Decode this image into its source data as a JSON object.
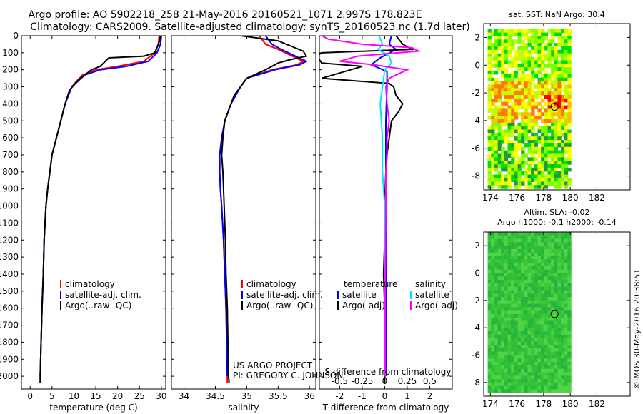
{
  "header": {
    "line1": "Argo profile: AO 5902218_258 21-May-2016 20160521_1071 2.997S 178.823E",
    "line2": "Climatology: CARS2009. Satellite-adjusted climatology: synTS_20160523.nc (1.7d later)"
  },
  "project": {
    "line1": "US ARGO PROJECT",
    "line2": "PI: GREGORY C. JOHNSON"
  },
  "timestamp": "©IMOS 30-May-2016 20:38:51",
  "chart_data": [
    {
      "id": "temperature",
      "type": "line",
      "xlabel": "temperature (deg C)",
      "xlim": [
        -2,
        31
      ],
      "xticks": [
        0,
        5,
        10,
        15,
        20,
        25,
        30
      ],
      "ylim": [
        2075,
        0
      ],
      "yticks": [
        0,
        100,
        200,
        300,
        400,
        500,
        600,
        700,
        800,
        900,
        1000,
        1100,
        1200,
        1300,
        1400,
        1500,
        1600,
        1700,
        1800,
        1900,
        2000
      ],
      "legend": [
        "climatology",
        "satellite-adj. clim.",
        "Argo(..raw -QC)"
      ],
      "legend_colors": [
        "#ff0000",
        "#0000ff",
        "#000000"
      ],
      "series": [
        {
          "name": "climatology",
          "color": "#ff0000",
          "points": [
            [
              29.5,
              0
            ],
            [
              29.3,
              50
            ],
            [
              28.5,
              100
            ],
            [
              26,
              150
            ],
            [
              20,
              180
            ],
            [
              15,
              200
            ],
            [
              12,
              230
            ],
            [
              10.5,
              270
            ],
            [
              9.5,
              300
            ],
            [
              8,
              400
            ],
            [
              7,
              500
            ],
            [
              6,
              600
            ],
            [
              5,
              700
            ],
            [
              4.5,
              800
            ],
            [
              4,
              900
            ],
            [
              3.6,
              1000
            ],
            [
              3.2,
              1200
            ],
            [
              3,
              1400
            ],
            [
              2.7,
              1600
            ],
            [
              2.5,
              1800
            ],
            [
              2.3,
              2000
            ],
            [
              2.3,
              2040
            ]
          ]
        },
        {
          "name": "satellite-adj. clim.",
          "color": "#0000ff",
          "points": [
            [
              30,
              0
            ],
            [
              29.8,
              50
            ],
            [
              29,
              100
            ],
            [
              27,
              150
            ],
            [
              22,
              180
            ],
            [
              16,
              200
            ],
            [
              12.5,
              230
            ],
            [
              10.8,
              270
            ],
            [
              9.5,
              300
            ],
            [
              8,
              400
            ],
            [
              7,
              500
            ],
            [
              6,
              600
            ],
            [
              5,
              700
            ],
            [
              4.5,
              800
            ],
            [
              4,
              900
            ],
            [
              3.6,
              1000
            ],
            [
              3.2,
              1200
            ],
            [
              3,
              1400
            ],
            [
              2.7,
              1600
            ],
            [
              2.5,
              1800
            ],
            [
              2.3,
              2000
            ]
          ]
        },
        {
          "name": "Argo(..raw -QC)",
          "color": "#000000",
          "points": [
            [
              29.8,
              0
            ],
            [
              29.6,
              30
            ],
            [
              29,
              70
            ],
            [
              28.5,
              100
            ],
            [
              26,
              120
            ],
            [
              18,
              130
            ],
            [
              16,
              180
            ],
            [
              14,
              200
            ],
            [
              12,
              240
            ],
            [
              11,
              260
            ],
            [
              10,
              290
            ],
            [
              9,
              320
            ],
            [
              8,
              400
            ],
            [
              7,
              500
            ],
            [
              6,
              600
            ],
            [
              5,
              700
            ],
            [
              4.5,
              800
            ],
            [
              4,
              900
            ],
            [
              3.6,
              1000
            ],
            [
              3.2,
              1200
            ],
            [
              3,
              1400
            ],
            [
              2.7,
              1600
            ],
            [
              2.5,
              1800
            ],
            [
              2.3,
              2000
            ],
            [
              2.3,
              2040
            ]
          ]
        }
      ]
    },
    {
      "id": "salinity",
      "type": "line",
      "xlabel": "salinity",
      "xlim": [
        33.8,
        36.1
      ],
      "xticks": [
        34,
        34.5,
        35,
        35.5,
        36
      ],
      "xtick_labels": [
        "34",
        "34.5",
        "35",
        "35.5",
        "36"
      ],
      "ylim": [
        2075,
        0
      ],
      "legend": [
        "climatology",
        "satellite-adj. clim.",
        "Argo(..raw -QC)"
      ],
      "legend_colors": [
        "#ff0000",
        "#0000ff",
        "#000000"
      ],
      "series": [
        {
          "name": "climatology",
          "color": "#ff0000",
          "points": [
            [
              35.2,
              0
            ],
            [
              35.3,
              50
            ],
            [
              35.5,
              80
            ],
            [
              35.9,
              150
            ],
            [
              35.8,
              170
            ],
            [
              35.4,
              200
            ],
            [
              35,
              250
            ],
            [
              34.9,
              300
            ],
            [
              34.75,
              400
            ],
            [
              34.65,
              500
            ],
            [
              34.6,
              600
            ],
            [
              34.57,
              700
            ],
            [
              34.57,
              800
            ],
            [
              34.58,
              900
            ],
            [
              34.6,
              1000
            ],
            [
              34.63,
              1200
            ],
            [
              34.65,
              1400
            ],
            [
              34.67,
              1600
            ],
            [
              34.68,
              1800
            ],
            [
              34.69,
              2000
            ],
            [
              34.69,
              2040
            ]
          ]
        },
        {
          "name": "satellite-adj. clim.",
          "color": "#0000ff",
          "points": [
            [
              35.3,
              0
            ],
            [
              35.4,
              50
            ],
            [
              35.55,
              80
            ],
            [
              35.95,
              150
            ],
            [
              35.85,
              170
            ],
            [
              35.45,
              200
            ],
            [
              35,
              250
            ],
            [
              34.9,
              300
            ],
            [
              34.75,
              400
            ],
            [
              34.65,
              500
            ],
            [
              34.6,
              600
            ],
            [
              34.57,
              700
            ],
            [
              34.57,
              800
            ],
            [
              34.58,
              900
            ],
            [
              34.6,
              1000
            ],
            [
              34.63,
              1200
            ],
            [
              34.65,
              1400
            ],
            [
              34.67,
              1600
            ],
            [
              34.68,
              1800
            ],
            [
              34.69,
              2000
            ]
          ]
        },
        {
          "name": "Argo(..raw -QC)",
          "color": "#000000",
          "points": [
            [
              34.9,
              0
            ],
            [
              35.1,
              10
            ],
            [
              35.5,
              30
            ],
            [
              35.9,
              90
            ],
            [
              35.95,
              120
            ],
            [
              35.7,
              140
            ],
            [
              35.5,
              160
            ],
            [
              35.3,
              200
            ],
            [
              35,
              250
            ],
            [
              34.9,
              300
            ],
            [
              34.8,
              350
            ],
            [
              34.75,
              400
            ],
            [
              34.65,
              500
            ],
            [
              34.62,
              600
            ],
            [
              34.6,
              700
            ],
            [
              34.62,
              800
            ],
            [
              34.63,
              900
            ],
            [
              34.64,
              1000
            ],
            [
              34.66,
              1200
            ],
            [
              34.67,
              1400
            ],
            [
              34.69,
              1600
            ],
            [
              34.7,
              1800
            ],
            [
              34.71,
              2000
            ],
            [
              34.72,
              2040
            ]
          ]
        }
      ]
    },
    {
      "id": "difference",
      "type": "line",
      "xlabel": "T difference from climatology",
      "x2label": "S difference from climatology",
      "xlim": [
        -2.9,
        3.0
      ],
      "xticks": [
        -2,
        -1,
        0,
        1,
        2
      ],
      "x2ticks": [
        -0.5,
        -0.25,
        0,
        0.25,
        0.5
      ],
      "x2tick_labels": [
        "-0.5",
        "-0.25",
        "0",
        "0.25",
        "0.5"
      ],
      "ylim": [
        2075,
        0
      ],
      "legend_t_header": "temperature",
      "legend_s_header": "salinity",
      "legend_t": [
        "satellite",
        "Argo(-adj)"
      ],
      "legend_t_colors": [
        "#0000ff",
        "#000000"
      ],
      "legend_s": [
        "satellite",
        "Argo(-adj)"
      ],
      "legend_s_colors": [
        "#00e5ff",
        "#ff00ff"
      ],
      "series": [
        {
          "name": "T satellite",
          "color": "#0000ff",
          "points": [
            [
              0.3,
              0
            ],
            [
              0.2,
              50
            ],
            [
              0.5,
              80
            ],
            [
              -0.2,
              130
            ],
            [
              -0.6,
              170
            ],
            [
              0.1,
              210
            ],
            [
              0.1,
              300
            ],
            [
              0.05,
              500
            ],
            [
              0.05,
              2000
            ]
          ]
        },
        {
          "name": "T Argo(-adj)",
          "color": "#000000",
          "points": [
            [
              0.5,
              0
            ],
            [
              0.8,
              50
            ],
            [
              1.2,
              80
            ],
            [
              -2.8,
              100
            ],
            [
              -3,
              120
            ],
            [
              -2.8,
              160
            ],
            [
              -1,
              180
            ],
            [
              -2.8,
              250
            ],
            [
              0.2,
              280
            ],
            [
              0.4,
              300
            ],
            [
              0.5,
              350
            ],
            [
              0.8,
              400
            ],
            [
              0.6,
              450
            ],
            [
              0.3,
              500
            ],
            [
              0.2,
              600
            ],
            [
              0.1,
              700
            ],
            [
              0.05,
              800
            ],
            [
              0,
              1000
            ],
            [
              0,
              1200
            ],
            [
              -0.05,
              1400
            ],
            [
              0,
              1600
            ],
            [
              0,
              1800
            ],
            [
              0,
              2040
            ]
          ]
        },
        {
          "name": "S satellite",
          "color": "#00e5ff",
          "points": [
            [
              -0.25,
              0
            ],
            [
              -0.1,
              50
            ],
            [
              -0.3,
              80
            ],
            [
              0.2,
              120
            ],
            [
              0.3,
              160
            ],
            [
              0,
              200
            ],
            [
              -0.1,
              300
            ],
            [
              -0.2,
              400
            ],
            [
              -0.15,
              500
            ],
            [
              -0.1,
              600
            ],
            [
              -0.1,
              800
            ],
            [
              0,
              1000
            ],
            [
              0,
              1500
            ],
            [
              0,
              2000
            ]
          ]
        },
        {
          "name": "S Argo(-adj)",
          "color": "#ff00ff",
          "points": [
            [
              -2.8,
              0
            ],
            [
              -2.5,
              20
            ],
            [
              -1,
              50
            ],
            [
              1.2,
              70
            ],
            [
              1.5,
              90
            ],
            [
              -1.2,
              120
            ],
            [
              -2,
              150
            ],
            [
              -0.5,
              170
            ],
            [
              1,
              200
            ],
            [
              0.2,
              250
            ],
            [
              0.05,
              300
            ],
            [
              0.1,
              400
            ],
            [
              0.2,
              500
            ],
            [
              0.1,
              600
            ],
            [
              0.1,
              700
            ],
            [
              0.05,
              800
            ],
            [
              0.05,
              1000
            ],
            [
              0.02,
              1500
            ],
            [
              0.02,
              2000
            ]
          ]
        }
      ]
    },
    {
      "id": "sst-map",
      "type": "heatmap",
      "title": "sat. SST: NaN Argo: 30.4",
      "xlim": [
        173.5,
        184.5
      ],
      "ylim": [
        -9,
        3
      ],
      "xticks": [
        174,
        176,
        178,
        180,
        182
      ],
      "yticks": [
        2,
        0,
        -2,
        -4,
        -6,
        -8
      ],
      "data_extent": {
        "lon": [
          173.8,
          180
        ],
        "lat": [
          -8.7,
          2.6
        ]
      },
      "argo_position": {
        "lon": 178.823,
        "lat": -2.997
      },
      "colors": [
        "#ff0000",
        "#ff7a00",
        "#ffbf00",
        "#ffff00",
        "#bfff00",
        "#7aff00",
        "#00dd00",
        "#1e9b3c"
      ]
    },
    {
      "id": "sla-map",
      "type": "heatmap",
      "title_line1": "Altim. SLA: -0.02",
      "title_line2": "Argo h1000: -0.1 h2000: -0.14",
      "xlim": [
        173.5,
        184.5
      ],
      "ylim": [
        -9,
        3
      ],
      "xticks": [
        174,
        176,
        178,
        180,
        182
      ],
      "yticks": [
        2,
        0,
        -2,
        -4,
        -6,
        -8
      ],
      "data_extent": {
        "lon": [
          173.8,
          180
        ],
        "lat": [
          -8.7,
          3
        ]
      },
      "argo_position": {
        "lon": 178.823,
        "lat": -2.997
      },
      "colors": [
        "#38c838",
        "#2fbe3a",
        "#52d246",
        "#26b43c"
      ]
    }
  ]
}
